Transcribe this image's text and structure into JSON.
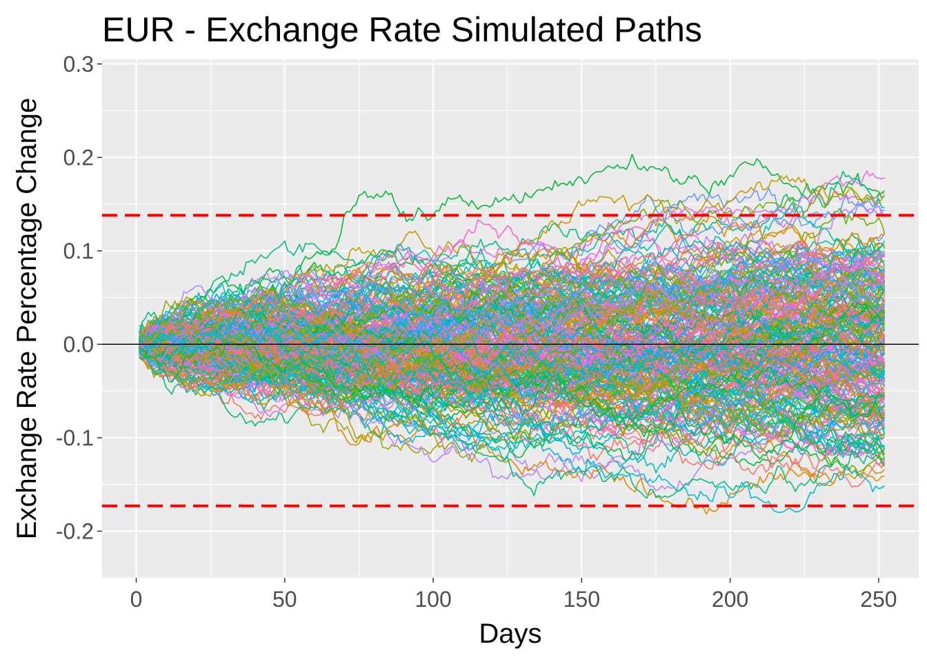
{
  "chart_data": {
    "type": "line",
    "title": "EUR - Exchange Rate Simulated Paths",
    "xlabel": "Days",
    "ylabel": "Exchange Rate Percentage Change",
    "xlim": [
      -11.5,
      263.5
    ],
    "ylim": [
      -0.25,
      0.305
    ],
    "x_ticks": [
      0,
      50,
      100,
      150,
      200,
      250
    ],
    "x_tick_labels": [
      "0",
      "50",
      "100",
      "150",
      "200",
      "250"
    ],
    "y_ticks": [
      -0.2,
      -0.1,
      0.0,
      0.1,
      0.2,
      0.3
    ],
    "y_tick_labels": [
      "-0.2",
      "-0.1",
      "0.0",
      "0.1",
      "0.2",
      "0.3"
    ],
    "grid": true,
    "legend": "none",
    "background": "#ebebeb",
    "n_days": 252,
    "n_paths": 250,
    "daily_volatility": 0.0047,
    "palette": [
      "#F8766D",
      "#E58700",
      "#C99800",
      "#A3A500",
      "#6BB100",
      "#00BA38",
      "#00BF7D",
      "#00C0AF",
      "#00BCD8",
      "#00B0F6",
      "#619CFF",
      "#B983FF",
      "#E76BF3",
      "#FD61D1",
      "#FF67A4"
    ],
    "reference_lines": [
      {
        "type": "hline",
        "y": 0.0,
        "color": "#000000",
        "style": "solid"
      },
      {
        "type": "hline",
        "y": 0.138,
        "color": "#ff0000",
        "style": "dashed"
      },
      {
        "type": "hline",
        "y": -0.173,
        "color": "#ff0000",
        "style": "dashed"
      }
    ]
  }
}
